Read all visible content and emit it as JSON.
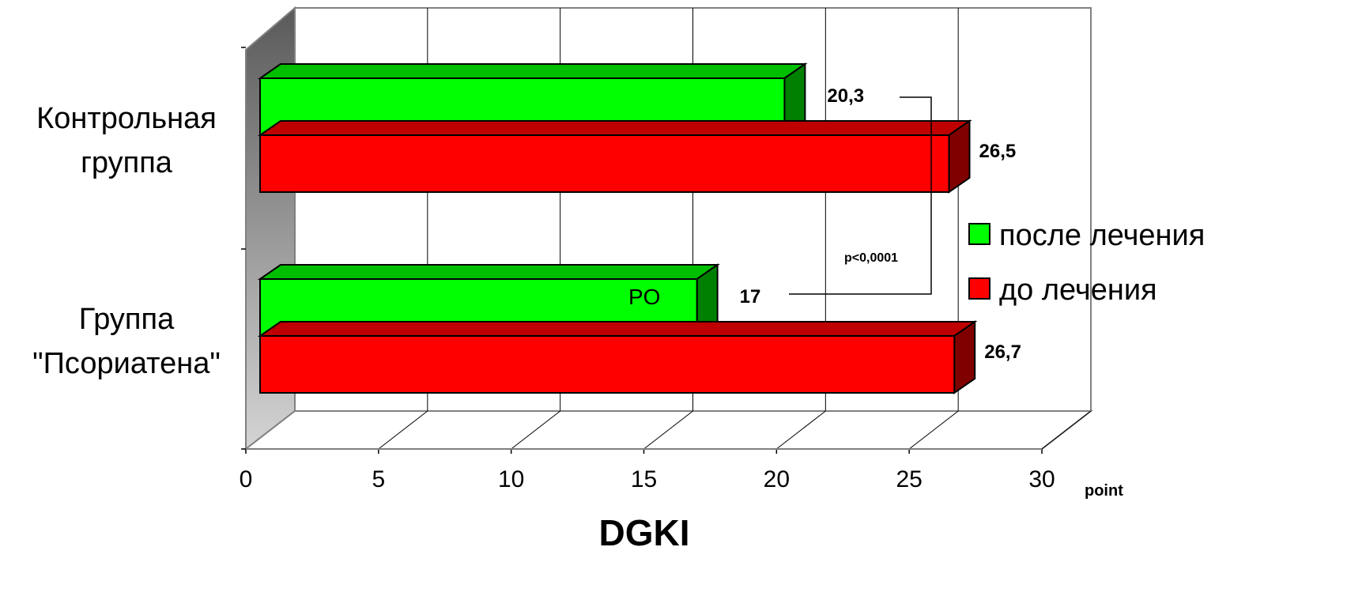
{
  "chart_data": {
    "type": "bar",
    "orientation": "horizontal",
    "style": "3d",
    "categories": [
      [
        "Контрольная",
        "группа"
      ],
      [
        "Группа",
        "\"Псориатена\""
      ]
    ],
    "series": [
      {
        "name": "после лечения",
        "color": "#00ff00",
        "values": [
          20.3,
          17
        ],
        "labels": [
          "20,3",
          "17"
        ]
      },
      {
        "name": "до лечения",
        "color": "#ff0000",
        "values": [
          26.5,
          26.7
        ],
        "labels": [
          "26,5",
          "26,7"
        ]
      }
    ],
    "xlim": [
      0,
      30
    ],
    "xticks": [
      "0",
      "5",
      "10",
      "15",
      "20",
      "25",
      "30"
    ],
    "xlabel": "DGKI",
    "xunit": "point",
    "grid": true,
    "legend": "right",
    "annotations": {
      "significance": "p<0,0001",
      "inbar": "PO"
    }
  }
}
